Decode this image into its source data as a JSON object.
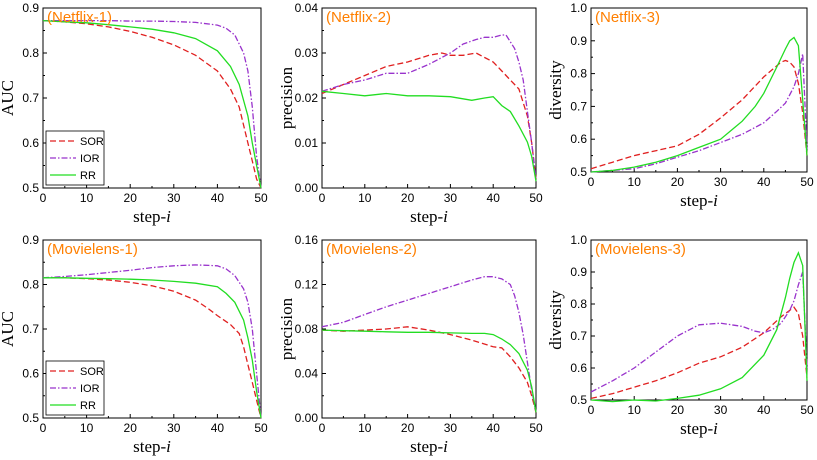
{
  "figure": {
    "title": "Six-panel comparison of SOR, IOR and RR versus step-i"
  },
  "styles": {
    "series_colors": {
      "SOR": "#e02020",
      "IOR": "#9933cc",
      "RR": "#22dd22"
    },
    "series_dash": {
      "SOR": "dashed",
      "IOR": "dash-dot",
      "RR": "solid"
    },
    "title_color": "#ff7f00"
  },
  "chart_data": [
    {
      "type": "line",
      "title": "(Netflix-1)",
      "xlabel": "step-",
      "xlabel_italic": "i",
      "ylabel": "AUC",
      "xlim": [
        0,
        50
      ],
      "ylim": [
        0.5,
        0.9
      ],
      "xticks": [
        "0",
        "10",
        "20",
        "30",
        "40",
        "50"
      ],
      "yticks": [
        "0.5",
        "0.6",
        "0.7",
        "0.8",
        "0.9"
      ],
      "legend": {
        "placement": "bottom-left",
        "entries": [
          "SOR",
          "IOR",
          "RR"
        ]
      },
      "series": [
        {
          "name": "SOR",
          "x": [
            0,
            5,
            10,
            15,
            20,
            25,
            30,
            35,
            40,
            43,
            45,
            47,
            48,
            49,
            50
          ],
          "y": [
            0.872,
            0.869,
            0.865,
            0.858,
            0.848,
            0.835,
            0.818,
            0.795,
            0.76,
            0.72,
            0.68,
            0.6,
            0.56,
            0.52,
            0.5
          ]
        },
        {
          "name": "IOR",
          "x": [
            0,
            5,
            10,
            15,
            20,
            25,
            30,
            35,
            40,
            42,
            44,
            46,
            47,
            48,
            49,
            50
          ],
          "y": [
            0.872,
            0.872,
            0.872,
            0.872,
            0.871,
            0.871,
            0.87,
            0.868,
            0.862,
            0.855,
            0.84,
            0.8,
            0.76,
            0.68,
            0.57,
            0.5
          ]
        },
        {
          "name": "RR",
          "x": [
            0,
            5,
            10,
            15,
            20,
            25,
            30,
            35,
            40,
            43,
            45,
            47,
            48,
            49,
            50
          ],
          "y": [
            0.872,
            0.869,
            0.867,
            0.863,
            0.858,
            0.853,
            0.845,
            0.832,
            0.805,
            0.77,
            0.73,
            0.66,
            0.6,
            0.55,
            0.5
          ]
        }
      ]
    },
    {
      "type": "line",
      "title": "(Netflix-2)",
      "xlabel": "step-",
      "xlabel_italic": "i",
      "ylabel": "precision",
      "xlim": [
        0,
        50
      ],
      "ylim": [
        0,
        0.04
      ],
      "xticks": [
        "0",
        "10",
        "20",
        "30",
        "40",
        "50"
      ],
      "yticks": [
        "0.00",
        "0.01",
        "0.02",
        "0.03",
        "0.04"
      ],
      "legend": null,
      "series": [
        {
          "name": "SOR",
          "x": [
            0,
            5,
            10,
            15,
            20,
            25,
            28,
            30,
            33,
            36,
            38,
            40,
            42,
            44,
            46,
            48,
            49,
            50
          ],
          "y": [
            0.021,
            0.023,
            0.025,
            0.027,
            0.028,
            0.0295,
            0.03,
            0.0295,
            0.0295,
            0.03,
            0.029,
            0.028,
            0.026,
            0.024,
            0.022,
            0.016,
            0.01,
            0.002
          ]
        },
        {
          "name": "IOR",
          "x": [
            0,
            5,
            10,
            15,
            20,
            25,
            30,
            33,
            36,
            38,
            40,
            42,
            43,
            45,
            46,
            47,
            48,
            49,
            50
          ],
          "y": [
            0.0215,
            0.023,
            0.024,
            0.0255,
            0.0255,
            0.0275,
            0.03,
            0.032,
            0.033,
            0.0335,
            0.0335,
            0.034,
            0.034,
            0.031,
            0.028,
            0.024,
            0.017,
            0.01,
            0.002
          ]
        },
        {
          "name": "RR",
          "x": [
            0,
            5,
            10,
            15,
            20,
            25,
            30,
            35,
            38,
            40,
            42,
            44,
            46,
            48,
            49,
            50
          ],
          "y": [
            0.0215,
            0.021,
            0.0205,
            0.021,
            0.0205,
            0.0205,
            0.0203,
            0.0195,
            0.02,
            0.0203,
            0.0183,
            0.017,
            0.0138,
            0.0102,
            0.007,
            0.0015
          ]
        }
      ]
    },
    {
      "type": "line",
      "title": "(Netflix-3)",
      "xlabel": "step-",
      "xlabel_italic": "i",
      "ylabel": "diversity",
      "xlim": [
        0,
        50
      ],
      "ylim": [
        0.5,
        1.0
      ],
      "xticks": [
        "0",
        "10",
        "20",
        "30",
        "40",
        "50"
      ],
      "yticks": [
        "0.5",
        "0.6",
        "0.7",
        "0.8",
        "0.9",
        "1.0"
      ],
      "legend": null,
      "series": [
        {
          "name": "SOR",
          "x": [
            0,
            5,
            10,
            15,
            20,
            25,
            30,
            35,
            40,
            44,
            45,
            46,
            47,
            48,
            49,
            50
          ],
          "y": [
            0.51,
            0.53,
            0.55,
            0.565,
            0.58,
            0.615,
            0.665,
            0.72,
            0.79,
            0.835,
            0.84,
            0.835,
            0.82,
            0.77,
            0.68,
            0.55
          ]
        },
        {
          "name": "IOR",
          "x": [
            0,
            5,
            10,
            15,
            20,
            25,
            30,
            35,
            40,
            43,
            45,
            47,
            48,
            49,
            50
          ],
          "y": [
            0.5,
            0.505,
            0.51,
            0.525,
            0.545,
            0.565,
            0.59,
            0.615,
            0.65,
            0.685,
            0.71,
            0.76,
            0.8,
            0.86,
            0.57
          ]
        },
        {
          "name": "RR",
          "x": [
            0,
            5,
            10,
            15,
            20,
            25,
            30,
            35,
            38,
            40,
            43,
            45,
            46,
            47,
            48,
            49,
            50
          ],
          "y": [
            0.5,
            0.505,
            0.515,
            0.53,
            0.55,
            0.575,
            0.6,
            0.655,
            0.7,
            0.74,
            0.82,
            0.875,
            0.9,
            0.91,
            0.885,
            0.72,
            0.55
          ]
        }
      ]
    },
    {
      "type": "line",
      "title": "(Movielens-1)",
      "xlabel": "step-",
      "xlabel_italic": "i",
      "ylabel": "AUC",
      "xlim": [
        0,
        50
      ],
      "ylim": [
        0.5,
        0.9
      ],
      "xticks": [
        "0",
        "10",
        "20",
        "30",
        "40",
        "50"
      ],
      "yticks": [
        "0.5",
        "0.6",
        "0.7",
        "0.8",
        "0.9"
      ],
      "legend": {
        "placement": "bottom-left",
        "entries": [
          "SOR",
          "IOR",
          "RR"
        ]
      },
      "series": [
        {
          "name": "SOR",
          "x": [
            0,
            5,
            10,
            15,
            20,
            25,
            30,
            35,
            38,
            40,
            43,
            45,
            46,
            47,
            48,
            49,
            50
          ],
          "y": [
            0.815,
            0.815,
            0.813,
            0.81,
            0.805,
            0.797,
            0.785,
            0.765,
            0.745,
            0.73,
            0.71,
            0.69,
            0.66,
            0.62,
            0.58,
            0.54,
            0.5
          ]
        },
        {
          "name": "IOR",
          "x": [
            0,
            5,
            10,
            15,
            20,
            25,
            30,
            35,
            38,
            40,
            42,
            44,
            46,
            47,
            48,
            49,
            50
          ],
          "y": [
            0.815,
            0.818,
            0.822,
            0.827,
            0.832,
            0.838,
            0.842,
            0.844,
            0.843,
            0.842,
            0.835,
            0.82,
            0.79,
            0.76,
            0.7,
            0.6,
            0.5
          ]
        },
        {
          "name": "RR",
          "x": [
            0,
            5,
            10,
            15,
            20,
            25,
            30,
            35,
            40,
            42,
            44,
            46,
            47,
            48,
            49,
            50
          ],
          "y": [
            0.815,
            0.815,
            0.814,
            0.813,
            0.812,
            0.81,
            0.807,
            0.803,
            0.795,
            0.78,
            0.76,
            0.72,
            0.68,
            0.63,
            0.56,
            0.5
          ]
        }
      ]
    },
    {
      "type": "line",
      "title": "(Movielens-2)",
      "xlabel": "step-",
      "xlabel_italic": "i",
      "ylabel": "precision",
      "xlim": [
        0,
        50
      ],
      "ylim": [
        0,
        0.16
      ],
      "xticks": [
        "0",
        "10",
        "20",
        "30",
        "40",
        "50"
      ],
      "yticks": [
        "0.00",
        "0.04",
        "0.08",
        "0.12",
        "0.16"
      ],
      "legend": null,
      "series": [
        {
          "name": "SOR",
          "x": [
            0,
            5,
            10,
            15,
            20,
            25,
            30,
            35,
            40,
            42,
            44,
            46,
            48,
            49,
            50
          ],
          "y": [
            0.079,
            0.078,
            0.079,
            0.08,
            0.082,
            0.079,
            0.075,
            0.07,
            0.064,
            0.063,
            0.055,
            0.045,
            0.032,
            0.02,
            0.005
          ]
        },
        {
          "name": "IOR",
          "x": [
            0,
            5,
            10,
            15,
            20,
            25,
            30,
            35,
            38,
            40,
            42,
            44,
            45,
            46,
            47,
            48,
            49,
            50
          ],
          "y": [
            0.082,
            0.086,
            0.093,
            0.1,
            0.106,
            0.112,
            0.118,
            0.124,
            0.127,
            0.127,
            0.125,
            0.12,
            0.11,
            0.095,
            0.075,
            0.05,
            0.025,
            0.005
          ]
        },
        {
          "name": "RR",
          "x": [
            0,
            5,
            10,
            15,
            20,
            25,
            30,
            35,
            38,
            40,
            42,
            44,
            46,
            48,
            49,
            50
          ],
          "y": [
            0.079,
            0.0785,
            0.078,
            0.0775,
            0.077,
            0.077,
            0.0765,
            0.076,
            0.076,
            0.075,
            0.071,
            0.066,
            0.058,
            0.043,
            0.028,
            0.005
          ]
        }
      ]
    },
    {
      "type": "line",
      "title": "(Movielens-3)",
      "xlabel": "step-",
      "xlabel_italic": "i",
      "ylabel": "diversity",
      "xlim": [
        0,
        50
      ],
      "ylim": [
        0.5,
        1.0
      ],
      "xticks": [
        "0",
        "10",
        "20",
        "30",
        "40",
        "50"
      ],
      "yticks": [
        "0.5",
        "0.6",
        "0.7",
        "0.8",
        "0.9",
        "1.0"
      ],
      "legend": null,
      "series": [
        {
          "name": "SOR",
          "x": [
            0,
            5,
            10,
            15,
            20,
            25,
            30,
            35,
            40,
            44,
            46,
            47,
            48,
            49,
            50
          ],
          "y": [
            0.505,
            0.52,
            0.54,
            0.56,
            0.585,
            0.615,
            0.635,
            0.665,
            0.71,
            0.76,
            0.78,
            0.79,
            0.77,
            0.7,
            0.57
          ]
        },
        {
          "name": "IOR",
          "x": [
            0,
            5,
            10,
            15,
            20,
            25,
            30,
            35,
            38,
            40,
            42,
            44,
            46,
            47,
            48,
            49,
            50
          ],
          "y": [
            0.525,
            0.56,
            0.6,
            0.65,
            0.7,
            0.735,
            0.74,
            0.73,
            0.715,
            0.71,
            0.72,
            0.74,
            0.78,
            0.81,
            0.86,
            0.9,
            0.6
          ]
        },
        {
          "name": "RR",
          "x": [
            0,
            5,
            10,
            15,
            20,
            25,
            30,
            35,
            40,
            43,
            45,
            46,
            47,
            48,
            49,
            50
          ],
          "y": [
            0.5,
            0.495,
            0.5,
            0.497,
            0.505,
            0.515,
            0.535,
            0.57,
            0.64,
            0.72,
            0.82,
            0.88,
            0.93,
            0.96,
            0.92,
            0.56
          ]
        }
      ]
    }
  ]
}
